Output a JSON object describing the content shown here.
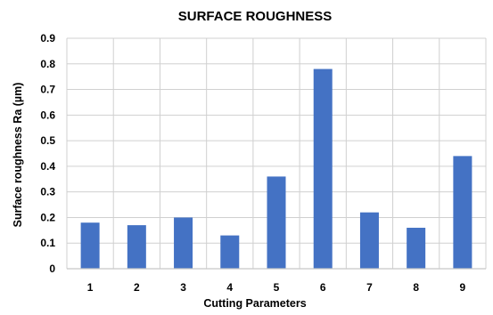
{
  "chart_data": {
    "type": "bar",
    "title": "SURFACE ROUGHNESS",
    "xlabel": "Cutting Parameters",
    "ylabel": "Surface roughness Ra (µm)",
    "categories": [
      "1",
      "2",
      "3",
      "4",
      "5",
      "6",
      "7",
      "8",
      "9"
    ],
    "values": [
      0.18,
      0.17,
      0.2,
      0.13,
      0.36,
      0.78,
      0.22,
      0.16,
      0.44
    ],
    "ylim": [
      0,
      0.9
    ],
    "yticks": [
      "0",
      "0.1",
      "0.2",
      "0.3",
      "0.4",
      "0.5",
      "0.6",
      "0.7",
      "0.8",
      "0.9"
    ],
    "grid": true,
    "legend": "none",
    "colors": {
      "bar": "#4472C4",
      "grid": "#D0D0D0",
      "text": "#000000"
    }
  }
}
